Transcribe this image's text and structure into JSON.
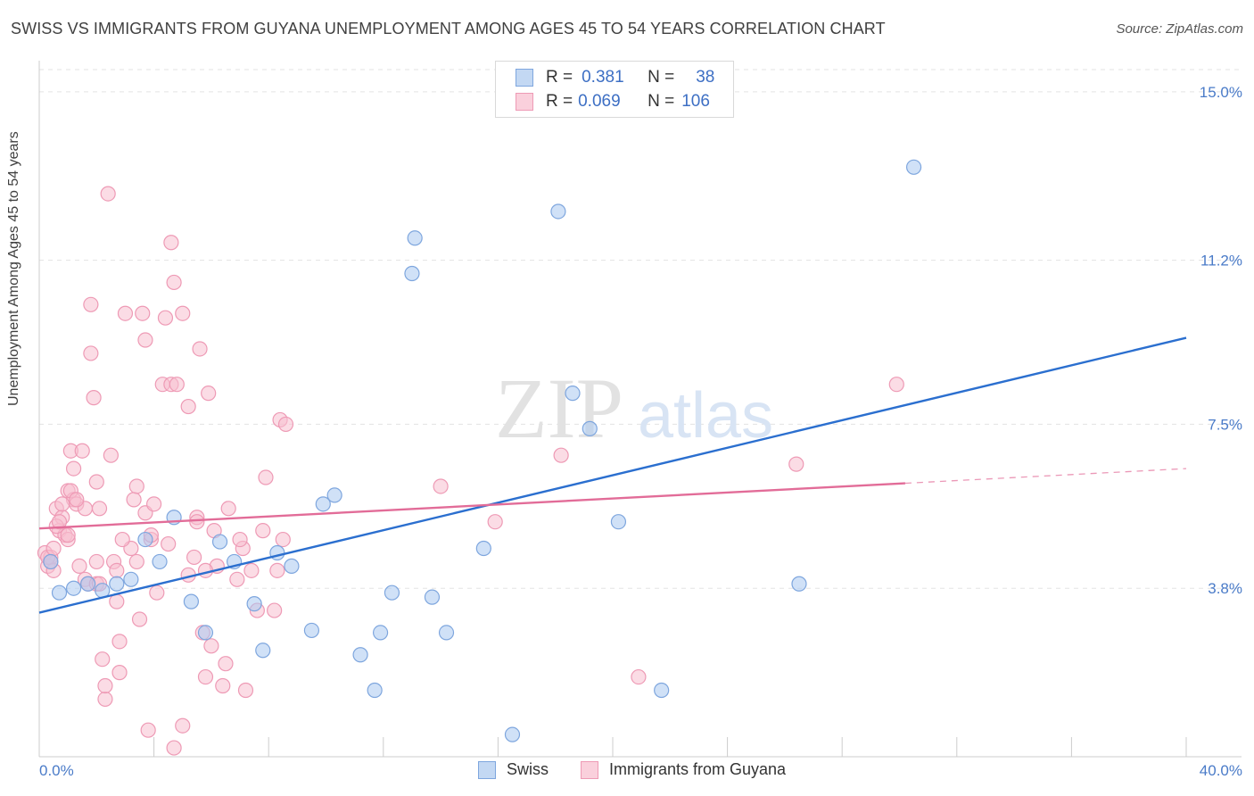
{
  "title": "SWISS VS IMMIGRANTS FROM GUYANA UNEMPLOYMENT AMONG AGES 45 TO 54 YEARS CORRELATION CHART",
  "source": "Source: ZipAtlas.com",
  "watermark": {
    "zip": "ZIP",
    "atlas": "atlas"
  },
  "legend_top": {
    "rows": [
      {
        "r_label": "R =",
        "r_value": "0.381",
        "n_label": "N =",
        "n_value": "38"
      },
      {
        "r_label": "R =",
        "r_value": "0.069",
        "n_label": "N =",
        "n_value": "106"
      }
    ]
  },
  "legend_bottom": {
    "swiss": "Swiss",
    "guyana": "Immigrants from Guyana"
  },
  "colors": {
    "swiss_fill": "#aac8f0",
    "swiss_stroke": "#7ea6de",
    "swiss_line": "#2b6fcf",
    "guyana_fill": "#f7bfd0",
    "guyana_stroke": "#ee9ab5",
    "guyana_line": "#e26c98",
    "grid": "#e3e3e3",
    "tick_text": "#4a7bc8"
  },
  "chart_data": {
    "type": "scatter",
    "xlabel": "",
    "ylabel": "Unemployment Among Ages 45 to 54 years",
    "xlim": [
      0,
      40
    ],
    "ylim": [
      0,
      15.5
    ],
    "x_tick_labels": {
      "min": "0.0%",
      "max": "40.0%"
    },
    "y_ticks": [
      {
        "value": 3.8,
        "label": "3.8%"
      },
      {
        "value": 7.5,
        "label": "7.5%"
      },
      {
        "value": 11.2,
        "label": "11.2%"
      },
      {
        "value": 15.0,
        "label": "15.0%"
      }
    ],
    "series": [
      {
        "name": "Swiss",
        "trend": {
          "x0": 0,
          "y0": 3.25,
          "x1": 40,
          "y1": 9.45,
          "solid_to": 40
        },
        "points": [
          [
            0.4,
            4.4
          ],
          [
            0.7,
            3.7
          ],
          [
            1.2,
            3.8
          ],
          [
            1.7,
            3.9
          ],
          [
            2.2,
            3.75
          ],
          [
            2.7,
            3.9
          ],
          [
            3.2,
            4.0
          ],
          [
            3.7,
            4.9
          ],
          [
            4.2,
            4.4
          ],
          [
            4.7,
            5.4
          ],
          [
            5.3,
            3.5
          ],
          [
            5.8,
            2.8
          ],
          [
            6.3,
            4.85
          ],
          [
            6.8,
            4.4
          ],
          [
            7.5,
            3.45
          ],
          [
            7.8,
            2.4
          ],
          [
            8.3,
            4.6
          ],
          [
            8.8,
            4.3
          ],
          [
            9.5,
            2.85
          ],
          [
            9.9,
            5.7
          ],
          [
            10.3,
            5.9
          ],
          [
            11.2,
            2.3
          ],
          [
            11.7,
            1.5
          ],
          [
            11.9,
            2.8
          ],
          [
            12.3,
            3.7
          ],
          [
            13.0,
            10.9
          ],
          [
            13.1,
            11.7
          ],
          [
            13.7,
            3.6
          ],
          [
            14.2,
            2.8
          ],
          [
            15.5,
            4.7
          ],
          [
            16.5,
            0.5
          ],
          [
            18.1,
            12.3
          ],
          [
            18.6,
            8.2
          ],
          [
            19.2,
            7.4
          ],
          [
            20.2,
            5.3
          ],
          [
            21.7,
            1.5
          ],
          [
            26.5,
            3.9
          ],
          [
            30.5,
            13.3
          ]
        ]
      },
      {
        "name": "Immigrants from Guyana",
        "trend": {
          "x0": 0,
          "y0": 5.15,
          "x1": 40,
          "y1": 6.5,
          "solid_to": 30.2
        },
        "points": [
          [
            0.2,
            4.6
          ],
          [
            0.3,
            4.3
          ],
          [
            0.4,
            4.5
          ],
          [
            0.5,
            4.2
          ],
          [
            0.6,
            5.6
          ],
          [
            0.7,
            5.1
          ],
          [
            0.8,
            5.4
          ],
          [
            0.9,
            5.0
          ],
          [
            1.0,
            6.0
          ],
          [
            1.0,
            4.9
          ],
          [
            1.1,
            6.9
          ],
          [
            1.2,
            6.5
          ],
          [
            1.2,
            5.8
          ],
          [
            1.3,
            5.7
          ],
          [
            1.4,
            4.3
          ],
          [
            1.5,
            6.9
          ],
          [
            1.6,
            4.0
          ],
          [
            1.6,
            5.6
          ],
          [
            1.7,
            3.9
          ],
          [
            1.8,
            10.2
          ],
          [
            1.8,
            9.1
          ],
          [
            1.9,
            8.1
          ],
          [
            2.0,
            6.2
          ],
          [
            2.0,
            3.9
          ],
          [
            2.1,
            5.6
          ],
          [
            2.2,
            2.2
          ],
          [
            2.3,
            1.3
          ],
          [
            2.3,
            1.6
          ],
          [
            2.4,
            12.7
          ],
          [
            2.5,
            6.8
          ],
          [
            2.6,
            4.4
          ],
          [
            2.7,
            4.2
          ],
          [
            2.7,
            3.5
          ],
          [
            2.8,
            2.6
          ],
          [
            2.8,
            1.9
          ],
          [
            3.0,
            10.0
          ],
          [
            3.3,
            5.8
          ],
          [
            3.4,
            6.1
          ],
          [
            3.4,
            4.4
          ],
          [
            3.5,
            3.1
          ],
          [
            3.6,
            10.0
          ],
          [
            3.7,
            9.4
          ],
          [
            3.7,
            5.5
          ],
          [
            3.8,
            0.6
          ],
          [
            3.9,
            4.9
          ],
          [
            3.9,
            5.0
          ],
          [
            4.0,
            5.7
          ],
          [
            4.1,
            3.7
          ],
          [
            4.3,
            8.4
          ],
          [
            4.4,
            9.9
          ],
          [
            4.6,
            11.6
          ],
          [
            4.6,
            8.4
          ],
          [
            4.7,
            10.7
          ],
          [
            4.7,
            0.2
          ],
          [
            4.8,
            8.4
          ],
          [
            5.0,
            0.7
          ],
          [
            5.0,
            10.0
          ],
          [
            5.2,
            4.1
          ],
          [
            5.2,
            7.9
          ],
          [
            5.4,
            4.5
          ],
          [
            5.5,
            5.4
          ],
          [
            5.6,
            9.2
          ],
          [
            5.7,
            2.8
          ],
          [
            5.8,
            1.8
          ],
          [
            5.9,
            8.2
          ],
          [
            6.0,
            2.5
          ],
          [
            6.2,
            4.3
          ],
          [
            6.4,
            1.6
          ],
          [
            6.5,
            2.1
          ],
          [
            6.6,
            5.6
          ],
          [
            6.9,
            4.0
          ],
          [
            7.1,
            4.7
          ],
          [
            7.2,
            1.5
          ],
          [
            7.4,
            4.2
          ],
          [
            7.6,
            3.3
          ],
          [
            7.8,
            5.1
          ],
          [
            7.9,
            6.3
          ],
          [
            8.2,
            3.3
          ],
          [
            8.3,
            4.2
          ],
          [
            8.4,
            7.6
          ],
          [
            8.5,
            4.9
          ],
          [
            8.6,
            7.5
          ],
          [
            0.3,
            4.5
          ],
          [
            0.4,
            4.4
          ],
          [
            0.5,
            4.7
          ],
          [
            0.6,
            5.2
          ],
          [
            0.7,
            5.3
          ],
          [
            0.8,
            5.7
          ],
          [
            1.0,
            5.0
          ],
          [
            1.1,
            6.0
          ],
          [
            1.3,
            5.8
          ],
          [
            2.0,
            4.4
          ],
          [
            2.1,
            3.9
          ],
          [
            3.2,
            4.7
          ],
          [
            4.5,
            4.8
          ],
          [
            5.5,
            5.3
          ],
          [
            5.8,
            4.2
          ],
          [
            14.0,
            6.1
          ],
          [
            15.9,
            5.3
          ],
          [
            18.2,
            6.8
          ],
          [
            20.9,
            1.8
          ],
          [
            26.4,
            6.6
          ],
          [
            29.9,
            8.4
          ],
          [
            6.1,
            5.1
          ],
          [
            7.0,
            4.9
          ],
          [
            2.9,
            4.9
          ]
        ]
      }
    ]
  }
}
